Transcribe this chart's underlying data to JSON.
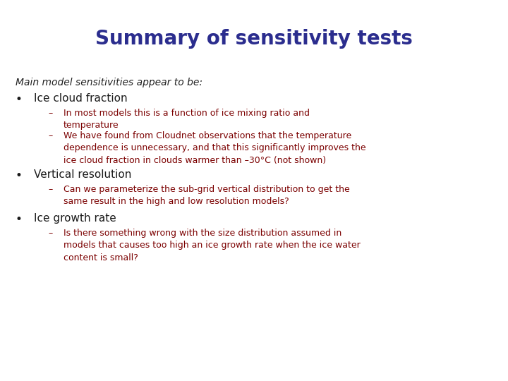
{
  "title": "Summary of sensitivity tests",
  "title_color": "#2B2D8E",
  "title_fontsize": 20,
  "background_color": "#FFFFFF",
  "intro_text": "Main model sensitivities appear to be:",
  "intro_color": "#222222",
  "intro_fontsize": 10,
  "bullet_color": "#1a1a1a",
  "bullet_fontsize": 11,
  "sub_color": "#7B0000",
  "sub_fontsize": 9,
  "bullets": [
    {
      "text": "Ice cloud fraction",
      "subs": [
        "In most models this is a function of ice mixing ratio and\ntemperature",
        "We have found from Cloudnet observations that the temperature\ndependence is unnecessary, and that this significantly improves the\nice cloud fraction in clouds warmer than –30°C (not shown)"
      ]
    },
    {
      "text": "Vertical resolution",
      "subs": [
        "Can we parameterize the sub-grid vertical distribution to get the\nsame result in the high and low resolution models?"
      ]
    },
    {
      "text": "Ice growth rate",
      "subs": [
        "Is there something wrong with the size distribution assumed in\nmodels that causes too high an ice growth rate when the ice water\ncontent is small?"
      ]
    }
  ]
}
